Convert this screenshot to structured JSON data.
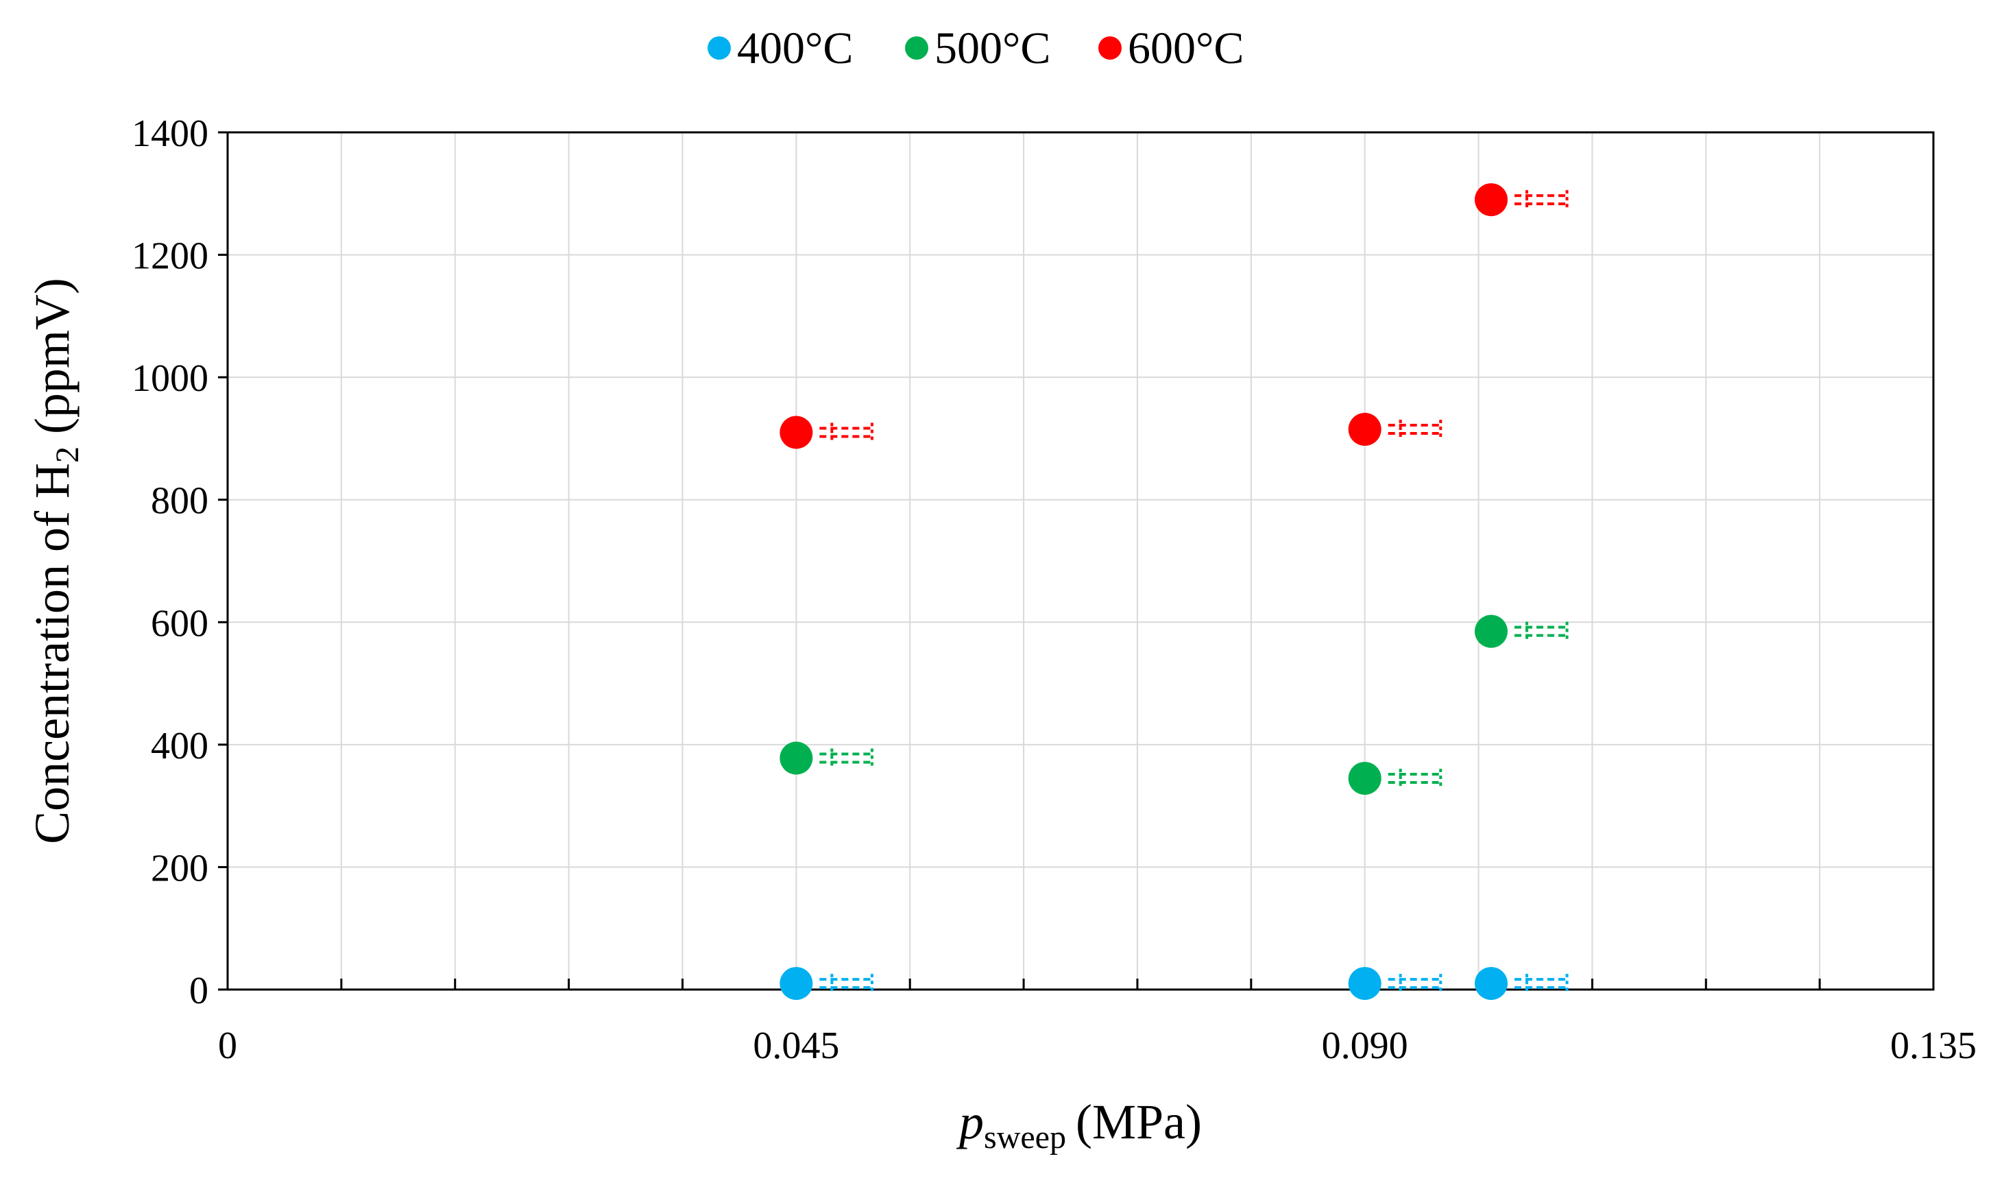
{
  "chart_data": {
    "type": "scatter",
    "title": "",
    "xlabel": {
      "symbol": "p",
      "subscript": "sweep",
      "unit": "(MPa)"
    },
    "ylabel": {
      "prefix": "Concentration of H",
      "subscript": "2",
      "suffix": " (ppmV)"
    },
    "xlim": [
      0,
      0.135
    ],
    "ylim": [
      0,
      1400
    ],
    "x_ticks": [
      0,
      0.045,
      0.09,
      0.135
    ],
    "x_tick_labels": [
      "0",
      "0.045",
      "0.090",
      "0.135"
    ],
    "x_minor_step": 0.009,
    "y_ticks": [
      0,
      200,
      400,
      600,
      800,
      1000,
      1200,
      1400
    ],
    "y_tick_labels": [
      "0",
      "200",
      "400",
      "600",
      "800",
      "1000",
      "1200",
      "1400"
    ],
    "grid": true,
    "legend_position": "top-center",
    "error_bar_halfwidth": 0.006,
    "series": [
      {
        "name": "400°C",
        "color": "#00B0F0",
        "points": [
          {
            "x": 0.045,
            "y": 10
          },
          {
            "x": 0.09,
            "y": 10
          },
          {
            "x": 0.1,
            "y": 10
          }
        ]
      },
      {
        "name": "500°C",
        "color": "#00B050",
        "points": [
          {
            "x": 0.045,
            "y": 378
          },
          {
            "x": 0.09,
            "y": 345
          },
          {
            "x": 0.1,
            "y": 585
          }
        ]
      },
      {
        "name": "600°C",
        "color": "#FF0000",
        "points": [
          {
            "x": 0.045,
            "y": 910
          },
          {
            "x": 0.09,
            "y": 915
          },
          {
            "x": 0.1,
            "y": 1290
          }
        ]
      }
    ]
  }
}
